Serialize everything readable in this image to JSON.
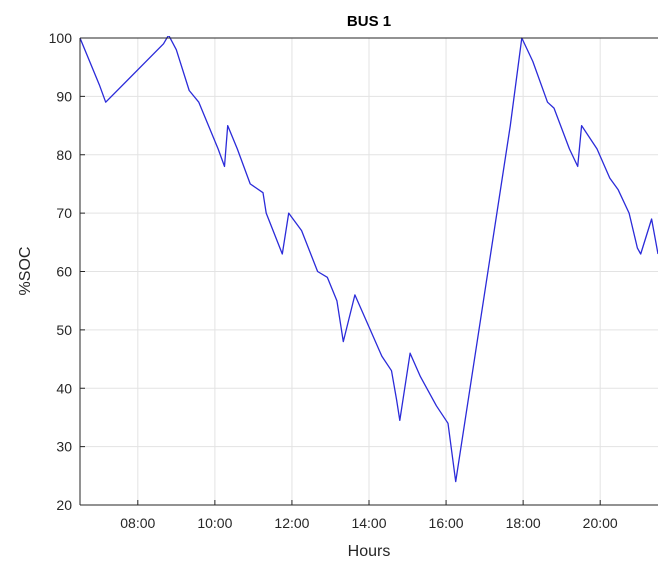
{
  "chart_data": {
    "type": "line",
    "title": "BUS 1",
    "xlabel": "Hours",
    "ylabel": "%SOC",
    "xlim": [
      "06:30",
      "21:30"
    ],
    "ylim": [
      20,
      100
    ],
    "grid": true,
    "yticks": [
      20,
      30,
      40,
      50,
      60,
      70,
      80,
      90,
      100
    ],
    "xticks": [
      "08:00",
      "10:00",
      "12:00",
      "14:00",
      "16:00",
      "18:00",
      "20:00"
    ],
    "colors": {
      "line": "#2b2bd9",
      "grid": "#e3e3e3",
      "axis": "#262626",
      "text": "#262626"
    },
    "series": [
      {
        "x": [
          "06:30",
          "07:00",
          "07:10",
          "08:40",
          "08:48",
          "09:00",
          "09:20",
          "09:35",
          "10:05",
          "10:15",
          "10:20",
          "10:35",
          "10:55",
          "11:15",
          "11:20",
          "11:45",
          "11:55",
          "12:15",
          "12:40",
          "12:55",
          "13:10",
          "13:20",
          "13:38",
          "14:02",
          "14:20",
          "14:35",
          "14:43",
          "14:48",
          "15:04",
          "15:20",
          "15:45",
          "16:03",
          "16:15",
          "17:40",
          "17:58",
          "18:15",
          "18:38",
          "18:48",
          "19:12",
          "19:25",
          "19:31",
          "19:55",
          "20:15",
          "20:28",
          "20:45",
          "20:58",
          "21:03",
          "21:20",
          "21:30"
        ],
        "values": [
          100,
          92,
          89,
          99,
          100.5,
          98,
          91,
          89,
          81,
          78,
          85,
          81,
          75,
          73.5,
          70,
          63,
          70,
          67,
          60,
          59,
          55,
          48,
          56,
          50,
          45.5,
          43,
          38,
          34.5,
          46,
          42,
          37,
          34,
          24,
          85,
          100,
          96,
          89,
          88,
          81,
          78,
          85,
          81,
          76,
          74,
          70,
          64,
          63,
          69,
          63
        ]
      }
    ]
  }
}
